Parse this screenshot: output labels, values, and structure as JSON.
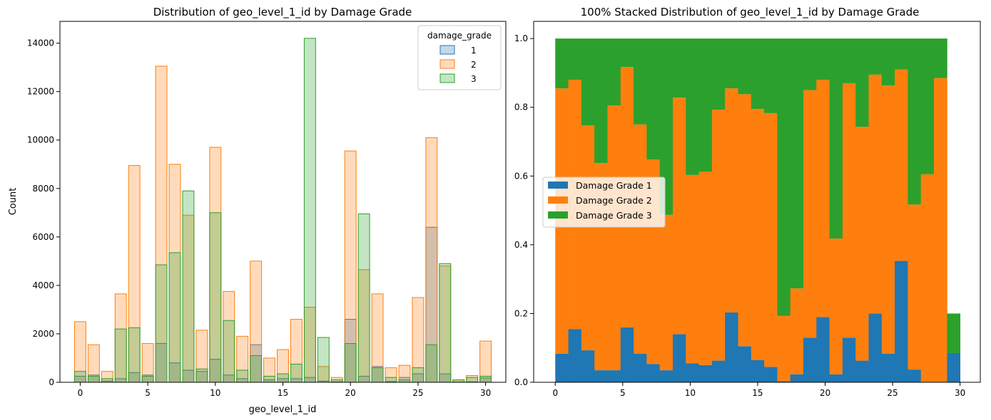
{
  "chart_data": [
    {
      "type": "bar",
      "variant": "histogram-step-overlay",
      "title": "Distribution of geo_level_1_id by Damage Grade",
      "xlabel": "geo_level_1_id",
      "ylabel": "Count",
      "xlim": [
        -1.5,
        31.5
      ],
      "ylim": [
        0,
        14900
      ],
      "xticks": [
        0,
        5,
        10,
        15,
        20,
        25,
        30
      ],
      "yticks": [
        0,
        2000,
        4000,
        6000,
        8000,
        10000,
        12000,
        14000
      ],
      "grid": false,
      "legend": {
        "title": "damage_grade",
        "placement": "top-right"
      },
      "categories": [
        0,
        1,
        2,
        3,
        4,
        5,
        6,
        7,
        8,
        9,
        10,
        11,
        12,
        13,
        14,
        15,
        16,
        17,
        18,
        19,
        20,
        21,
        22,
        23,
        24,
        25,
        26,
        27,
        28,
        29,
        30
      ],
      "series": [
        {
          "name": "1",
          "color": "#1f77b4",
          "values": [
            250,
            300,
            50,
            150,
            400,
            300,
            1600,
            800,
            500,
            450,
            950,
            300,
            150,
            1550,
            100,
            150,
            150,
            200,
            50,
            20,
            2600,
            250,
            650,
            30,
            200,
            350,
            6400,
            350,
            10,
            20,
            180
          ]
        },
        {
          "name": "2",
          "color": "#ff7f0e",
          "values": [
            2500,
            1550,
            450,
            3650,
            8950,
            1600,
            13050,
            9000,
            6900,
            2150,
            9700,
            3750,
            1900,
            5000,
            1000,
            1350,
            2600,
            3100,
            650,
            200,
            9550,
            4650,
            3650,
            600,
            700,
            3500,
            10100,
            4800,
            100,
            280,
            1700
          ]
        },
        {
          "name": "3",
          "color": "#2ca02c",
          "values": [
            450,
            250,
            150,
            2200,
            2250,
            250,
            4850,
            5350,
            7900,
            550,
            7000,
            2550,
            500,
            1100,
            250,
            350,
            750,
            14200,
            1850,
            100,
            1600,
            6950,
            600,
            200,
            100,
            600,
            1550,
            4900,
            100,
            200,
            250
          ]
        }
      ]
    },
    {
      "type": "bar",
      "variant": "stacked-100-percent",
      "title": "100% Stacked Distribution of geo_level_1_id by Damage Grade",
      "xlabel": "",
      "ylabel": "",
      "xlim": [
        -1.6,
        31.5
      ],
      "ylim": [
        0,
        1.05
      ],
      "xticks": [
        0,
        5,
        10,
        15,
        20,
        25,
        30
      ],
      "yticks": [
        0.0,
        0.2,
        0.4,
        0.6,
        0.8,
        1.0
      ],
      "grid": false,
      "legend": {
        "title": "",
        "placement": "center-left"
      },
      "categories": [
        0,
        1,
        2,
        3,
        4,
        5,
        6,
        7,
        8,
        9,
        10,
        11,
        12,
        13,
        14,
        15,
        16,
        17,
        18,
        19,
        20,
        21,
        22,
        23,
        24,
        25,
        26,
        27,
        28,
        29,
        30
      ],
      "series": [
        {
          "name": "Damage Grade 1",
          "color": "#1f77b4",
          "values": [
            0.083,
            0.155,
            0.093,
            0.035,
            0.035,
            0.16,
            0.083,
            0.053,
            0.035,
            0.14,
            0.055,
            0.05,
            0.063,
            0.203,
            0.105,
            0.065,
            0.045,
            0.003,
            0.023,
            0.13,
            0.19,
            0.023,
            0.13,
            0.063,
            0.2,
            0.083,
            0.353,
            0.037,
            0.0,
            0.0,
            0.085
          ]
        },
        {
          "name": "Damage Grade 2",
          "color": "#ff7f0e",
          "values": [
            0.772,
            0.725,
            0.654,
            0.603,
            0.77,
            0.757,
            0.667,
            0.595,
            0.452,
            0.688,
            0.548,
            0.563,
            0.73,
            0.652,
            0.733,
            0.73,
            0.738,
            0.19,
            0.25,
            0.72,
            0.69,
            0.395,
            0.74,
            0.68,
            0.695,
            0.78,
            0.557,
            0.48,
            0.605,
            0.885,
            0.0
          ]
        },
        {
          "name": "Damage Grade 3",
          "color": "#2ca02c",
          "values": [
            0.145,
            0.12,
            0.253,
            0.362,
            0.195,
            0.083,
            0.25,
            0.352,
            0.513,
            0.172,
            0.397,
            0.387,
            0.207,
            0.145,
            0.162,
            0.205,
            0.217,
            0.807,
            0.727,
            0.15,
            0.12,
            0.582,
            0.13,
            0.257,
            0.105,
            0.137,
            0.09,
            0.483,
            0.395,
            0.115,
            0.115
          ]
        }
      ]
    }
  ]
}
